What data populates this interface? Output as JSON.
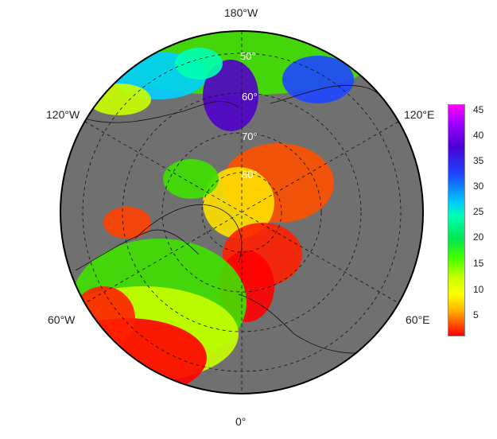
{
  "longitude_labels": {
    "top": "180°W",
    "upper_left": "120°W",
    "upper_right": "120°E",
    "lower_left": "60°W",
    "lower_right": "60°E",
    "bottom": "0°"
  },
  "latitude_labels": [
    "50°",
    "60°",
    "70°",
    "80°"
  ],
  "colorbar": {
    "ticks": [
      "45",
      "40",
      "35",
      "30",
      "25",
      "20",
      "15",
      "10",
      "5"
    ],
    "min": 1,
    "max": 47
  },
  "colors": {
    "land": "#707070",
    "background": "#ffffff"
  }
}
